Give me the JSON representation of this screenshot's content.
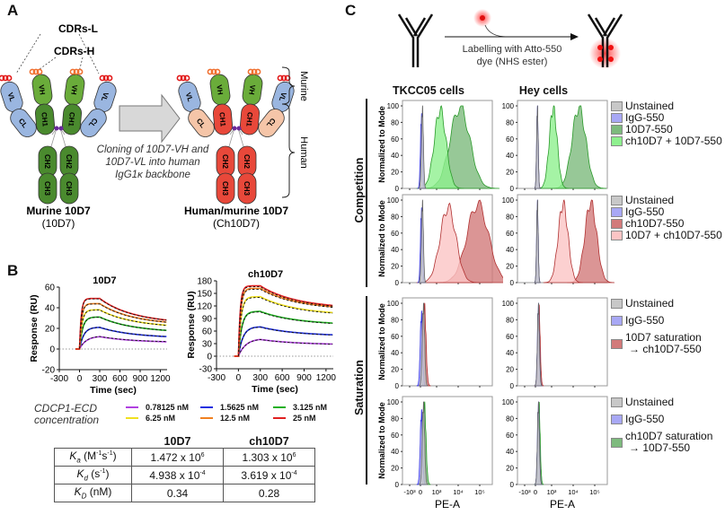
{
  "panels": {
    "A": {
      "letter": "A",
      "cdrs_l": "CDRs-L",
      "cdrs_h": "CDRs-H",
      "murine_title": "Murine 10D7",
      "murine_sub": "(10D7)",
      "chimeric_title": "Human/murine 10D7",
      "chimeric_sub": "(Ch10D7)",
      "arrow_caption": [
        "Cloning of 10D7-VH and",
        "10D7-VL into human",
        "IgG1κ backbone"
      ],
      "bracket_murine": "Murine",
      "bracket_human": "Human",
      "domains": {
        "VL": "VL",
        "VH": "VH",
        "CL": "CL",
        "CH1": "CH1",
        "CH2": "CH2",
        "CH3": "CH3"
      },
      "colors": {
        "murine_heavy": "#4a8a2e",
        "murine_vh": "#6aac3a",
        "murine_light": "#9ab6e0",
        "human_heavy": "#e8483a",
        "human_light": "#f5c5a8",
        "cdr_l": "#e21a1a",
        "cdr_h": "#f07030"
      }
    },
    "B": {
      "letter": "B",
      "legend_title": [
        "CDCP1-ECD",
        "concentration"
      ],
      "table": {
        "headers": [
          "",
          "10D7",
          "ch10D7"
        ],
        "rows": [
          {
            "param": "K",
            "sub": "a",
            "unit": " (M",
            "unit_sup1": "-1",
            "unit_mid": "s",
            "unit_sup2": "-1",
            "unit_end": ")",
            "v1": "1.472 x 10",
            "v1_exp": "6",
            "v2": "1.303 x 10",
            "v2_exp": "6"
          },
          {
            "param": "K",
            "sub": "d",
            "unit": " (s",
            "unit_sup1": "-1",
            "unit_mid": "",
            "unit_sup2": "",
            "unit_end": ")",
            "v1": "4.938 x 10",
            "v1_exp": "-4",
            "v2": "3.619 x 10",
            "v2_exp": "-4"
          },
          {
            "param": "K",
            "sub": "D",
            "unit": " (nM)",
            "unit_sup1": "",
            "unit_mid": "",
            "unit_sup2": "",
            "unit_end": "",
            "v1": "0.34",
            "v1_exp": "",
            "v2": "0.28",
            "v2_exp": ""
          }
        ]
      }
    },
    "C": {
      "letter": "C",
      "labelling_text": [
        "Labelling with Atto-550",
        "dye (NHS ester)"
      ],
      "col_titles": [
        "TKCC05 cells",
        "Hey cells"
      ],
      "group_labels": [
        "Competition",
        "Saturation"
      ],
      "ylabel": "Normalized to Mode",
      "xlabel": "PE-A",
      "xticks": [
        "-10³",
        "0",
        "10³",
        "10⁴",
        "10⁵"
      ],
      "yticks": [
        "0",
        "20",
        "40",
        "60",
        "80",
        "100"
      ],
      "legends": [
        [
          {
            "label": "Unstained",
            "color": "#c8c8c8"
          },
          {
            "label": "IgG-550",
            "color": "#a8a8f5"
          },
          {
            "label": "10D7-550",
            "color": "#7dba7d"
          },
          {
            "label": "ch10D7 + 10D7-550",
            "color": "#8ef08e"
          }
        ],
        [
          {
            "label": "Unstained",
            "color": "#c8c8c8"
          },
          {
            "label": "IgG-550",
            "color": "#a8a8f5"
          },
          {
            "label": "ch10D7-550",
            "color": "#d27a7a"
          },
          {
            "label": "10D7 + ch10D7-550",
            "color": "#fbc4c4"
          }
        ],
        [
          {
            "label": "Unstained",
            "color": "#c8c8c8"
          },
          {
            "label": "IgG-550",
            "color": "#a8a8f5"
          },
          {
            "label": "10D7 saturation",
            "label2": "→ ch10D7-550",
            "color": "#d27a7a"
          }
        ],
        [
          {
            "label": "Unstained",
            "color": "#c8c8c8"
          },
          {
            "label": "IgG-550",
            "color": "#a8a8f5"
          },
          {
            "label": "ch10D7 saturation",
            "label2": "→ 10D7-550",
            "color": "#7dba7d"
          }
        ]
      ]
    }
  },
  "chart_data": [
    {
      "type": "line",
      "title": "10D7",
      "xlabel": "Time (sec)",
      "ylabel": "Response (RU)",
      "xlim": [
        -300,
        1300
      ],
      "ylim": [
        -20,
        60
      ],
      "xticks": [
        -300,
        0,
        300,
        600,
        900,
        1200
      ],
      "yticks": [
        -20,
        0,
        20,
        40,
        60
      ],
      "baseline": 0,
      "association_end": 300,
      "series": [
        {
          "name": "0.78125 nM",
          "color": "#b040e0",
          "peak": 12,
          "end": 7
        },
        {
          "name": "1.5625 nM",
          "color": "#2030e0",
          "peak": 21,
          "end": 12
        },
        {
          "name": "3.125 nM",
          "color": "#20b020",
          "peak": 31,
          "end": 18
        },
        {
          "name": "6.25 nM",
          "color": "#f0e020",
          "peak": 38,
          "end": 23
        },
        {
          "name": "12.5 nM",
          "color": "#f08020",
          "peak": 44,
          "end": 26
        },
        {
          "name": "25 nM",
          "color": "#e02020",
          "peak": 49,
          "end": 28
        }
      ]
    },
    {
      "type": "line",
      "title": "ch10D7",
      "xlabel": "Time (sec)",
      "ylabel": "Response (RU)",
      "xlim": [
        -300,
        1300
      ],
      "ylim": [
        -30,
        180
      ],
      "xticks": [
        -300,
        0,
        300,
        600,
        900,
        1200
      ],
      "yticks": [
        -30,
        0,
        30,
        60,
        90,
        120,
        150,
        180
      ],
      "baseline": 0,
      "association_end": 300,
      "series": [
        {
          "name": "0.78125 nM",
          "color": "#b040e0",
          "peak": 40,
          "end": 29
        },
        {
          "name": "1.5625 nM",
          "color": "#2030e0",
          "peak": 70,
          "end": 51
        },
        {
          "name": "3.125 nM",
          "color": "#20b020",
          "peak": 107,
          "end": 79
        },
        {
          "name": "6.25 nM",
          "color": "#f0e020",
          "peak": 142,
          "end": 104
        },
        {
          "name": "12.5 nM",
          "color": "#f08020",
          "peak": 162,
          "end": 118
        },
        {
          "name": "25 nM",
          "color": "#e02020",
          "peak": 168,
          "end": 121
        }
      ]
    },
    {
      "type": "area",
      "title": "Flow cytometry histograms",
      "xlabel": "PE-A",
      "ylabel": "Normalized to Mode",
      "ylim": [
        0,
        100
      ],
      "x_scale": "biexponential",
      "note": "peak positions in decades of PE-A (0 = ~0, 3 = 10^3)",
      "grid": [
        {
          "row": "Competition 10D7-550",
          "col": "TKCC05 cells",
          "series": [
            {
              "name": "Unstained",
              "center": 0.1,
              "width": 0.05,
              "peak": 97
            },
            {
              "name": "IgG-550",
              "center": 0.05,
              "width": 0.05,
              "peak": 86
            },
            {
              "name": "ch10D7 + 10D7-550",
              "center": 1.0,
              "width": 0.3,
              "peak": 95
            },
            {
              "name": "10D7-550",
              "center": 2.0,
              "width": 0.5,
              "peak": 98
            }
          ]
        },
        {
          "row": "Competition 10D7-550",
          "col": "Hey cells",
          "series": [
            {
              "name": "Unstained",
              "center": 0.1,
              "width": 0.04,
              "peak": 97
            },
            {
              "name": "IgG-550",
              "center": 0.1,
              "width": 0.04,
              "peak": 97
            },
            {
              "name": "ch10D7 + 10D7-550",
              "center": 0.9,
              "width": 0.2,
              "peak": 97
            },
            {
              "name": "10D7-550",
              "center": 2.2,
              "width": 0.35,
              "peak": 98
            }
          ]
        },
        {
          "row": "Competition ch10D7-550",
          "col": "TKCC05 cells",
          "series": [
            {
              "name": "Unstained",
              "center": 0.1,
              "width": 0.05,
              "peak": 97
            },
            {
              "name": "IgG-550",
              "center": 0.05,
              "width": 0.05,
              "peak": 86
            },
            {
              "name": "10D7 + ch10D7-550",
              "center": 1.4,
              "width": 0.4,
              "peak": 91
            },
            {
              "name": "ch10D7-550",
              "center": 2.9,
              "width": 0.55,
              "peak": 95
            }
          ]
        },
        {
          "row": "Competition ch10D7-550",
          "col": "Hey cells",
          "series": [
            {
              "name": "Unstained",
              "center": 0.1,
              "width": 0.04,
              "peak": 97
            },
            {
              "name": "IgG-550",
              "center": 0.1,
              "width": 0.04,
              "peak": 97
            },
            {
              "name": "10D7 + ch10D7-550",
              "center": 1.4,
              "width": 0.25,
              "peak": 95
            },
            {
              "name": "ch10D7-550",
              "center": 2.8,
              "width": 0.3,
              "peak": 97
            }
          ]
        },
        {
          "row": "Saturation 10D7 → ch10D7-550",
          "col": "TKCC05 cells",
          "series": [
            {
              "name": "Unstained",
              "center": 0.15,
              "width": 0.06,
              "peak": 97
            },
            {
              "name": "IgG-550",
              "center": 0.05,
              "width": 0.06,
              "peak": 86
            },
            {
              "name": "10D7 saturation → ch10D7-550",
              "center": 0.2,
              "width": 0.08,
              "peak": 97
            }
          ]
        },
        {
          "row": "Saturation 10D7 → ch10D7-550",
          "col": "Hey cells",
          "series": [
            {
              "name": "Unstained",
              "center": 0.15,
              "width": 0.05,
              "peak": 97
            },
            {
              "name": "IgG-550",
              "center": 0.15,
              "width": 0.05,
              "peak": 97
            },
            {
              "name": "10D7 saturation → ch10D7-550",
              "center": 0.18,
              "width": 0.06,
              "peak": 93
            }
          ]
        },
        {
          "row": "Saturation ch10D7 → 10D7-550",
          "col": "TKCC05 cells",
          "series": [
            {
              "name": "Unstained",
              "center": 0.15,
              "width": 0.06,
              "peak": 97
            },
            {
              "name": "IgG-550",
              "center": 0.05,
              "width": 0.06,
              "peak": 86
            },
            {
              "name": "ch10D7 saturation → 10D7-550",
              "center": 0.2,
              "width": 0.08,
              "peak": 97
            }
          ]
        },
        {
          "row": "Saturation ch10D7 → 10D7-550",
          "col": "Hey cells",
          "series": [
            {
              "name": "Unstained",
              "center": 0.15,
              "width": 0.05,
              "peak": 97
            },
            {
              "name": "IgG-550",
              "center": 0.15,
              "width": 0.05,
              "peak": 97
            },
            {
              "name": "ch10D7 saturation → 10D7-550",
              "center": 0.18,
              "width": 0.06,
              "peak": 95
            }
          ]
        }
      ]
    }
  ]
}
